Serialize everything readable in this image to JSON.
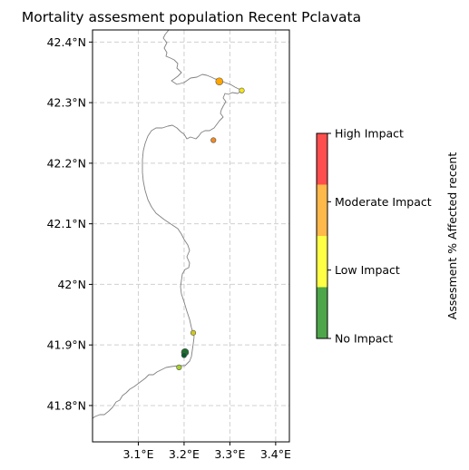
{
  "chart_data": {
    "type": "scatter",
    "title": "Mortality assesment population Recent Pclavata",
    "x_ticks": [
      {
        "value": 3.1,
        "label": "3.1°E"
      },
      {
        "value": 3.2,
        "label": "3.2°E"
      },
      {
        "value": 3.3,
        "label": "3.3°E"
      },
      {
        "value": 3.4,
        "label": "3.4°E"
      }
    ],
    "y_ticks": [
      {
        "value": 42.4,
        "label": "42.4°N"
      },
      {
        "value": 42.3,
        "label": "42.3°N"
      },
      {
        "value": 42.2,
        "label": "42.2°N"
      },
      {
        "value": 42.1,
        "label": "42.1°N"
      },
      {
        "value": 42.0,
        "label": "42°N"
      },
      {
        "value": 41.9,
        "label": "41.9°N"
      },
      {
        "value": 41.8,
        "label": "41.8°N"
      }
    ],
    "xlim": [
      3.0,
      3.43
    ],
    "ylim": [
      41.74,
      42.42
    ],
    "grid": true,
    "colorbar": {
      "label": "Assesment % Affected recent",
      "categories": [
        {
          "label": "No Impact",
          "color": "#4ea64a"
        },
        {
          "label": "Low Impact",
          "color": "#ffff46"
        },
        {
          "label": "Moderate Impact",
          "color": "#ffb84a"
        },
        {
          "label": "High Impact",
          "color": "#ff4e4e"
        }
      ]
    },
    "points": [
      {
        "lon": 3.277,
        "lat": 42.335,
        "category": "Moderate Impact",
        "color": "#ffa500",
        "large": true
      },
      {
        "lon": 3.326,
        "lat": 42.32,
        "category": "Low Impact",
        "color": "#f2e51a",
        "large": false
      },
      {
        "lon": 3.264,
        "lat": 42.238,
        "category": "Moderate Impact",
        "color": "#f08a24",
        "large": false
      },
      {
        "lon": 3.22,
        "lat": 41.92,
        "category": "Low Impact",
        "color": "#cfc622",
        "large": false
      },
      {
        "lon": 3.202,
        "lat": 41.888,
        "category": "No Impact",
        "color": "#1f6f2f",
        "large": true
      },
      {
        "lon": 3.2,
        "lat": 41.883,
        "category": "No Impact",
        "color": "#0a5a2a",
        "large": false
      },
      {
        "lon": 3.189,
        "lat": 41.863,
        "category": "Low Impact",
        "color": "#a6cf2a",
        "large": false
      }
    ]
  }
}
